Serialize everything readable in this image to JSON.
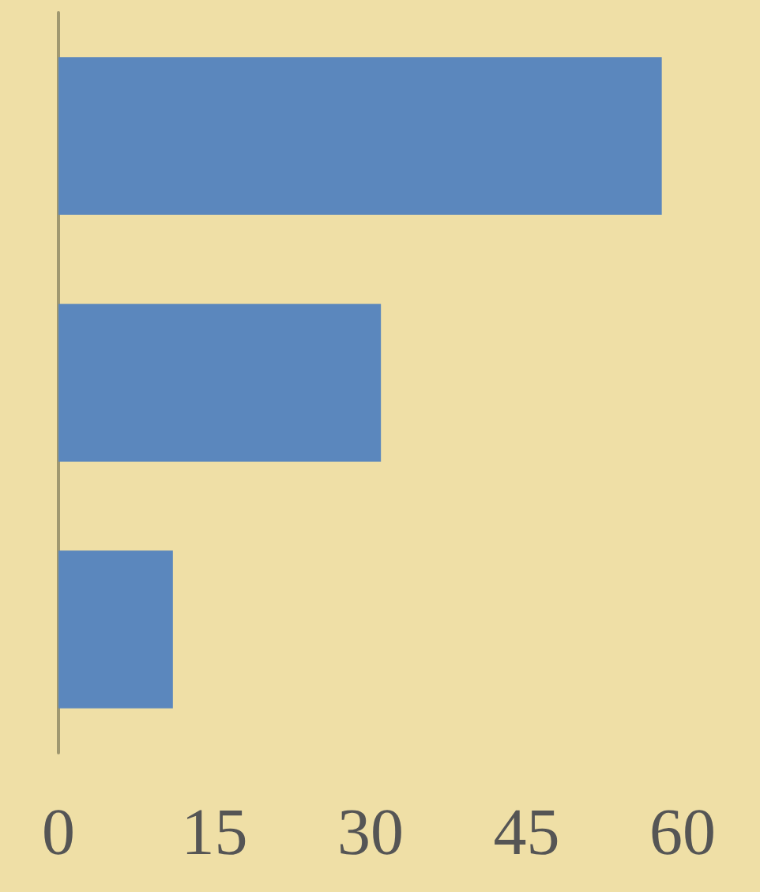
{
  "chart_data": {
    "type": "bar",
    "orientation": "horizontal",
    "categories": [
      null,
      null,
      null
    ],
    "values": [
      58,
      31,
      11
    ],
    "color": "#5b87bd",
    "xlim": [
      0,
      60
    ],
    "xticks": [
      0,
      15,
      30,
      45,
      60
    ],
    "grid": false
  }
}
